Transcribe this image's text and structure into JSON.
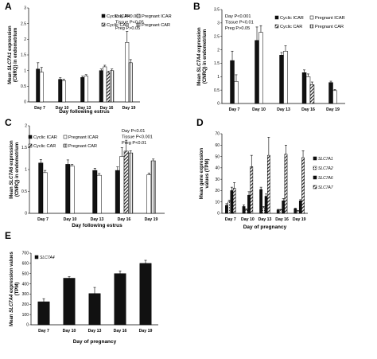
{
  "chart_data": [
    {
      "panel": "A",
      "type": "bar",
      "ylabel_parts": [
        "Mean ",
        "SLC7A1",
        " expression"
      ],
      "ylabel2": "(CNRQ) in endometrium",
      "xlabel": "Day following estrus",
      "categories": [
        "Day 7",
        "Day 10",
        "Day 13",
        "Day 16",
        "Day 19"
      ],
      "ylim": [
        0,
        3
      ],
      "yticks": [
        "0",
        "0.5",
        "1",
        "1.5",
        "2",
        "2.5",
        "3"
      ],
      "series": [
        {
          "name": "Cyclic ICAR",
          "values": [
            1.05,
            0.72,
            0.78,
            1.0,
            null
          ],
          "errors": [
            0.2,
            0.05,
            0.04,
            0.05,
            null
          ]
        },
        {
          "name": "Pregnant ICAR",
          "values": [
            0.95,
            0.68,
            0.83,
            1.12,
            1.9
          ],
          "errors": [
            0.15,
            0.05,
            0.04,
            0.05,
            0.35
          ]
        },
        {
          "name": "Cyclic CAR",
          "values": [
            null,
            null,
            null,
            0.93,
            null
          ],
          "errors": [
            null,
            null,
            null,
            0.05,
            null
          ]
        },
        {
          "name": "Pregnant CAR",
          "values": [
            null,
            null,
            null,
            1.0,
            1.25
          ],
          "errors": [
            null,
            null,
            null,
            0.05,
            0.1
          ]
        }
      ],
      "stats": [
        "Day    P<0.001",
        "Tissue  P<0.05",
        "Preg    P>0.05"
      ]
    },
    {
      "panel": "B",
      "type": "bar",
      "ylabel_parts": [
        "Mean ",
        "SLC7A4",
        " expression"
      ],
      "ylabel2": "(CNRQ) in endometrium",
      "xlabel": "",
      "categories": [
        "Day 7",
        "Day 10",
        "Day 13",
        "Day 16",
        "Day 19"
      ],
      "ylim": [
        0,
        3.5
      ],
      "yticks": [
        "0",
        "0.5",
        "1",
        "1.5",
        "2",
        "2.5",
        "3",
        "3.5"
      ],
      "series": [
        {
          "name": "Cyclic ICAR",
          "values": [
            1.6,
            2.35,
            1.8,
            1.15,
            0.78
          ],
          "errors": [
            0.35,
            0.5,
            0.1,
            0.1,
            0.05
          ]
        },
        {
          "name": "Pregnant ICAR",
          "values": [
            0.82,
            2.65,
            1.95,
            1.0,
            0.48
          ],
          "errors": [
            0.25,
            0.25,
            0.2,
            0.1,
            0.04
          ]
        },
        {
          "name": "Cyclic CAR",
          "values": [
            null,
            null,
            null,
            0.7,
            null
          ],
          "errors": [
            null,
            null,
            null,
            0.1,
            null
          ]
        },
        {
          "name": "Pregnant CAR",
          "values": [
            null,
            null,
            null,
            null,
            null
          ],
          "errors": [
            null,
            null,
            null,
            null,
            null
          ]
        }
      ],
      "stats": [
        "Day    P<0.001",
        "Tissue  P<0.01",
        "Preg    P>0.05"
      ]
    },
    {
      "panel": "C",
      "type": "bar",
      "ylabel_parts": [
        "Mean ",
        "SLC7A6",
        " expression"
      ],
      "ylabel2": "(CNRQ) in endometrium",
      "xlabel": "Day following estrus",
      "categories": [
        "Day 7",
        "Day 10",
        "Day 13",
        "Day 16",
        "Day 19"
      ],
      "ylim": [
        0,
        2
      ],
      "yticks": [
        "0",
        "0.5",
        "1",
        "1.5",
        "2"
      ],
      "series": [
        {
          "name": "Cyclic ICAR",
          "values": [
            1.15,
            1.12,
            0.98,
            0.98,
            null
          ],
          "errors": [
            0.08,
            0.1,
            0.05,
            0.08,
            null
          ]
        },
        {
          "name": "Pregnant ICAR",
          "values": [
            0.93,
            1.08,
            0.87,
            1.3,
            0.88
          ],
          "errors": [
            0.05,
            0.04,
            0.04,
            0.2,
            0.04
          ]
        },
        {
          "name": "Cyclic CAR",
          "values": [
            null,
            null,
            null,
            1.42,
            null
          ],
          "errors": [
            null,
            null,
            null,
            0.25,
            null
          ]
        },
        {
          "name": "Pregnant CAR",
          "values": [
            null,
            null,
            null,
            1.38,
            1.2
          ],
          "errors": [
            null,
            null,
            null,
            0.05,
            0.04
          ]
        }
      ],
      "stats": [
        "Day    P<0.01",
        "Tissue  P<0.001",
        "Preg    P<0.01"
      ]
    },
    {
      "panel": "D",
      "type": "bar",
      "ylabel": "Mean gene expression",
      "ylabel2": "values (TPM)",
      "xlabel": "Day of pregnancy",
      "categories": [
        "Day 7",
        "Day 10",
        "Day 13",
        "Day 16",
        "Day 19"
      ],
      "ylim": [
        0,
        70
      ],
      "yticks": [
        "0",
        "10",
        "20",
        "30",
        "40",
        "50",
        "60",
        "70"
      ],
      "series": [
        {
          "name": "SLC7A1",
          "values": [
            7,
            6,
            21,
            3,
            4
          ],
          "errors": [
            1.5,
            1.5,
            2,
            0.5,
            0.5
          ]
        },
        {
          "name": "SLC7A2",
          "values": [
            10,
            3,
            5,
            3,
            2
          ],
          "errors": [
            1.5,
            1,
            1,
            0.5,
            0.5
          ]
        },
        {
          "name": "SLC7A6",
          "values": [
            20,
            16,
            15,
            11,
            11
          ],
          "errors": [
            3,
            3,
            2,
            2,
            1
          ]
        },
        {
          "name": "SLC7A7",
          "values": [
            22,
            41,
            51,
            52,
            49
          ],
          "errors": [
            5,
            10,
            16,
            8,
            6
          ]
        }
      ]
    },
    {
      "panel": "E",
      "type": "bar",
      "ylabel_parts": [
        "Mean ",
        "SLC7A4",
        " expression values"
      ],
      "ylabel2": "(TPM)",
      "xlabel": "Day of pregnancy",
      "categories": [
        "Day 7",
        "Day 10",
        "Day 13",
        "Day 16",
        "Day 19"
      ],
      "ylim": [
        0,
        700
      ],
      "yticks": [
        "0",
        "100",
        "200",
        "300",
        "400",
        "500",
        "600",
        "700"
      ],
      "series": [
        {
          "name": "SLC7A4",
          "values": [
            225,
            455,
            305,
            500,
            600
          ],
          "errors": [
            30,
            15,
            60,
            25,
            30
          ]
        }
      ]
    }
  ]
}
